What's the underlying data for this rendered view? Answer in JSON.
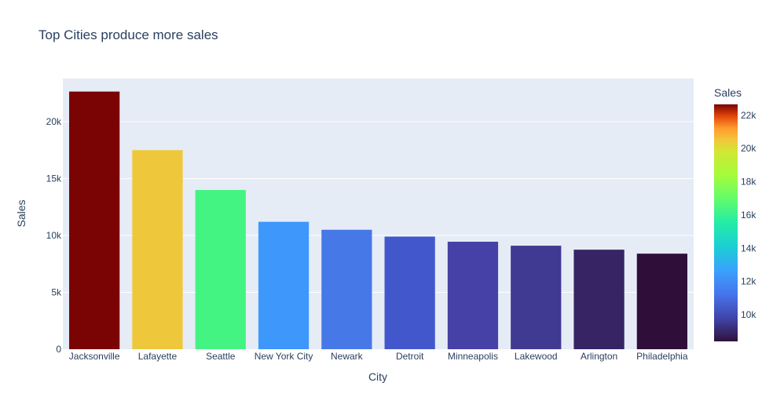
{
  "chart_data": {
    "type": "bar",
    "title": "Top Cities produce more sales",
    "xlabel": "City",
    "ylabel": "Sales",
    "categories": [
      "Jacksonville",
      "Lafayette",
      "Seattle",
      "New York City",
      "Newark",
      "Detroit",
      "Minneapolis",
      "Lakewood",
      "Arlington",
      "Philadelphia"
    ],
    "values": [
      22650,
      17500,
      14000,
      11200,
      10500,
      9900,
      9450,
      9100,
      8750,
      8400
    ],
    "bar_colors": [
      "#7a0403",
      "#efc73b",
      "#43f483",
      "#3e97fb",
      "#4678e8",
      "#4357cd",
      "#4541a6",
      "#403a93",
      "#362464",
      "#2f0e3a"
    ],
    "ylim": [
      0,
      23800
    ],
    "yticks": [
      0,
      5000,
      10000,
      15000,
      20000
    ],
    "ytick_labels": [
      "0",
      "5k",
      "10k",
      "15k",
      "20k"
    ],
    "grid": true,
    "plot_bgcolor": "#e5ecf6",
    "colorbar": {
      "title": "Sales",
      "colorscale": "turbo",
      "range": [
        8400,
        22650
      ],
      "ticks": [
        10000,
        12000,
        14000,
        16000,
        18000,
        20000,
        22000
      ],
      "tick_labels": [
        "10k",
        "12k",
        "14k",
        "16k",
        "18k",
        "20k",
        "22k"
      ],
      "placement": "right"
    }
  }
}
